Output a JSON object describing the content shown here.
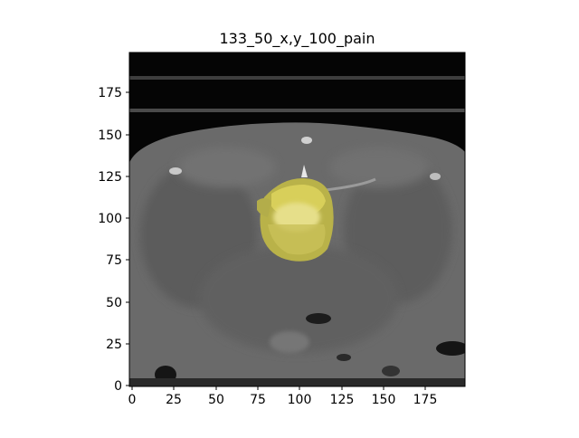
{
  "title": "133_50_x,y_100_pain",
  "image": {
    "content": "CT slice with yellow segmentation overlay",
    "overlay_color": "#d8cf5a",
    "background_color": "#050505"
  },
  "axes": {
    "x_ticks": [
      "0",
      "25",
      "50",
      "75",
      "100",
      "125",
      "150",
      "175"
    ],
    "y_ticks": [
      "0",
      "25",
      "50",
      "75",
      "100",
      "125",
      "150",
      "175"
    ],
    "xlim": [
      0,
      199
    ],
    "ylim": [
      0,
      199
    ]
  }
}
